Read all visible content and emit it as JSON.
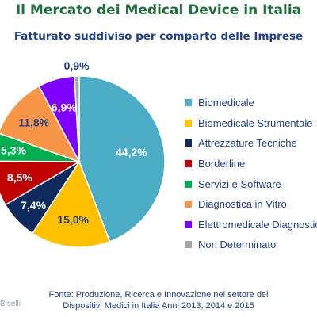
{
  "title": "Il Mercato dei Medical Device in Italia",
  "subtitle": "Fatturato suddiviso per comparto delle Imprese",
  "footer": {
    "line1": "Fonte: Produzione, Ricerca e Innovazione nel settore dei",
    "line2": "Dispositivi Medici in Italia  Anni 2013, 2014 e 2015"
  },
  "author": "Biselli",
  "chart_data": {
    "type": "pie",
    "title": "Il Mercato dei Medical Device in Italia",
    "subtitle": "Fatturato suddiviso per comparto delle Imprese",
    "legend_position": "right",
    "slices": [
      {
        "label": "Biomedicale",
        "value": 44.2,
        "display": "44,2%",
        "color": "#4bacc6"
      },
      {
        "label": "Biomedicale Strumentale",
        "value": 15.0,
        "display": "15,0%",
        "color": "#ffc000"
      },
      {
        "label": "Attrezzature Tecniche",
        "value": 7.4,
        "display": "7,4%",
        "color": "#0e2a5c"
      },
      {
        "label": "Borderline",
        "value": 8.5,
        "display": "8,5%",
        "color": "#c00000"
      },
      {
        "label": "Servizi e Software",
        "value": 5.3,
        "display": "5,3%",
        "color": "#00b050"
      },
      {
        "label": "Diagnostica in Vitro",
        "value": 11.8,
        "display": "11,8%",
        "color": "#f79646"
      },
      {
        "label": "Elettromedicale Diagnostico",
        "value": 6.9,
        "display": "6,9%",
        "color": "#7f00ff"
      },
      {
        "label": "Non Determinato",
        "value": 0.9,
        "display": "0,9%",
        "color": "#a6a6a6"
      }
    ]
  }
}
